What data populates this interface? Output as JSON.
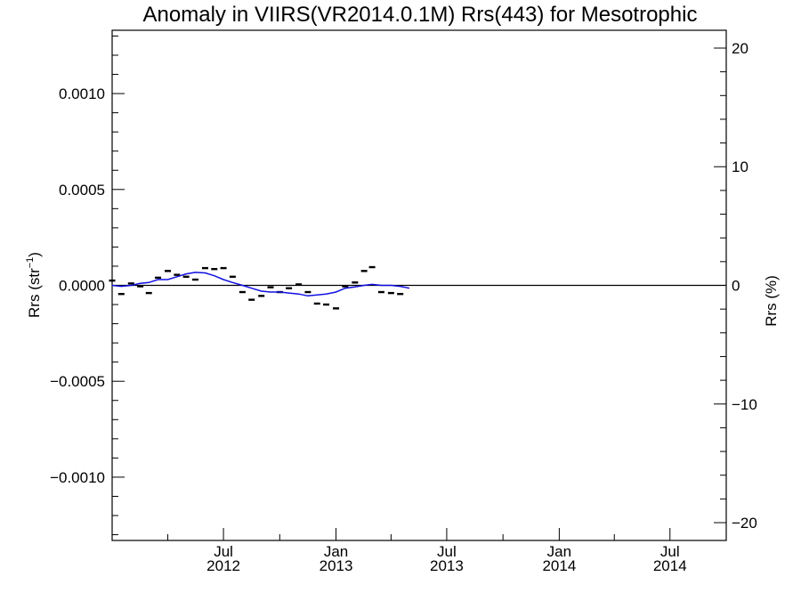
{
  "chart_data": {
    "type": "line",
    "title": "Anomaly in VIIRS(VR2014.0.1M) Rrs(443) for Mesotrophic",
    "ylabel": "Rrs (str",
    "ylabel_sup": "−1",
    "ylabel_close": ")",
    "ylabel_right": "Rrs (%)",
    "xlim": [
      "2012-01-01",
      "2014-10-01"
    ],
    "ylim": [
      -0.00133,
      0.00133
    ],
    "ylim_right": [
      -21.5,
      21.5
    ],
    "grid": false,
    "y_ticks": [
      {
        "value": 0.001,
        "label": "0.0010"
      },
      {
        "value": 0.0005,
        "label": "0.0005"
      },
      {
        "value": 0.0,
        "label": "0.0000"
      },
      {
        "value": -0.0005,
        "label": "−0.0005"
      },
      {
        "value": -0.001,
        "label": "−0.0010"
      }
    ],
    "y_right_ticks": [
      {
        "value": 20,
        "label": "20"
      },
      {
        "value": 10,
        "label": "10"
      },
      {
        "value": 0,
        "label": "0"
      },
      {
        "value": -10,
        "label": "−10"
      },
      {
        "value": -20,
        "label": "−20"
      }
    ],
    "x_ticks": [
      {
        "value": "2012-07-01",
        "label": "Jul",
        "year": "2012"
      },
      {
        "value": "2013-01-01",
        "label": "Jan",
        "year": "2013"
      },
      {
        "value": "2013-07-01",
        "label": "Jul",
        "year": "2013"
      },
      {
        "value": "2014-01-01",
        "label": "Jan",
        "year": "2014"
      },
      {
        "value": "2014-07-01",
        "label": "Jul",
        "year": "2014"
      }
    ],
    "x_minor_ticks": [
      "2012-01-01",
      "2012-04-01",
      "2012-10-01",
      "2013-04-01",
      "2013-10-01",
      "2014-04-01",
      "2014-10-01"
    ],
    "reference_line": {
      "y": 0.0,
      "color": "#000000"
    },
    "series": [
      {
        "kind": "markers",
        "color": "#000000",
        "points": [
          {
            "x": "2012-01-01",
            "y": 2.5e-05
          },
          {
            "x": "2012-01-16",
            "y": -4.5e-05
          },
          {
            "x": "2012-02-01",
            "y": 1e-05
          },
          {
            "x": "2012-02-16",
            "y": -5e-06
          },
          {
            "x": "2012-03-01",
            "y": -4e-05
          },
          {
            "x": "2012-03-16",
            "y": 4e-05
          },
          {
            "x": "2012-04-01",
            "y": 7.5e-05
          },
          {
            "x": "2012-04-16",
            "y": 5.5e-05
          },
          {
            "x": "2012-05-01",
            "y": 4.5e-05
          },
          {
            "x": "2012-05-16",
            "y": 3e-05
          },
          {
            "x": "2012-06-01",
            "y": 9e-05
          },
          {
            "x": "2012-06-16",
            "y": 8.5e-05
          },
          {
            "x": "2012-07-01",
            "y": 9e-05
          },
          {
            "x": "2012-07-16",
            "y": 4.5e-05
          },
          {
            "x": "2012-08-01",
            "y": -3.5e-05
          },
          {
            "x": "2012-08-16",
            "y": -7.5e-05
          },
          {
            "x": "2012-09-01",
            "y": -5.5e-05
          },
          {
            "x": "2012-09-16",
            "y": -1e-05
          },
          {
            "x": "2012-10-01",
            "y": -3.5e-05
          },
          {
            "x": "2012-10-16",
            "y": -1.5e-05
          },
          {
            "x": "2012-11-01",
            "y": 5e-06
          },
          {
            "x": "2012-11-16",
            "y": -3.5e-05
          },
          {
            "x": "2012-12-01",
            "y": -9.5e-05
          },
          {
            "x": "2012-12-16",
            "y": -0.0001
          },
          {
            "x": "2013-01-01",
            "y": -0.00012
          },
          {
            "x": "2013-01-16",
            "y": -5e-06
          },
          {
            "x": "2013-02-01",
            "y": 1.5e-05
          },
          {
            "x": "2013-02-16",
            "y": 7.5e-05
          },
          {
            "x": "2013-03-01",
            "y": 9.5e-05
          },
          {
            "x": "2013-03-16",
            "y": -3.5e-05
          },
          {
            "x": "2013-04-01",
            "y": -4e-05
          },
          {
            "x": "2013-04-16",
            "y": -4.5e-05
          }
        ]
      },
      {
        "kind": "line",
        "color": "#1010e0",
        "points": [
          {
            "x": "2012-01-01",
            "y": 0.0
          },
          {
            "x": "2012-01-16",
            "y": -5e-06
          },
          {
            "x": "2012-02-01",
            "y": 0.0
          },
          {
            "x": "2012-02-16",
            "y": 1e-05
          },
          {
            "x": "2012-03-01",
            "y": 1.5e-05
          },
          {
            "x": "2012-03-16",
            "y": 3e-05
          },
          {
            "x": "2012-04-01",
            "y": 3e-05
          },
          {
            "x": "2012-04-16",
            "y": 4.5e-05
          },
          {
            "x": "2012-05-01",
            "y": 6e-05
          },
          {
            "x": "2012-05-16",
            "y": 6.8e-05
          },
          {
            "x": "2012-06-01",
            "y": 6.5e-05
          },
          {
            "x": "2012-06-16",
            "y": 5e-05
          },
          {
            "x": "2012-07-01",
            "y": 3e-05
          },
          {
            "x": "2012-07-16",
            "y": 1.5e-05
          },
          {
            "x": "2012-08-01",
            "y": 0.0
          },
          {
            "x": "2012-08-16",
            "y": -1.5e-05
          },
          {
            "x": "2012-09-01",
            "y": -3e-05
          },
          {
            "x": "2012-09-16",
            "y": -3.5e-05
          },
          {
            "x": "2012-10-01",
            "y": -3.5e-05
          },
          {
            "x": "2012-10-16",
            "y": -4e-05
          },
          {
            "x": "2012-11-01",
            "y": -4.5e-05
          },
          {
            "x": "2012-11-16",
            "y": -5.5e-05
          },
          {
            "x": "2012-12-01",
            "y": -5e-05
          },
          {
            "x": "2012-12-16",
            "y": -4.5e-05
          },
          {
            "x": "2013-01-01",
            "y": -3.5e-05
          },
          {
            "x": "2013-01-16",
            "y": -1.5e-05
          },
          {
            "x": "2013-02-01",
            "y": -8e-06
          },
          {
            "x": "2013-02-16",
            "y": 0.0
          },
          {
            "x": "2013-03-01",
            "y": 5e-06
          },
          {
            "x": "2013-03-16",
            "y": 0.0
          },
          {
            "x": "2013-04-01",
            "y": 0.0
          },
          {
            "x": "2013-04-16",
            "y": -5e-06
          },
          {
            "x": "2013-05-01",
            "y": -1.5e-05
          }
        ]
      }
    ]
  }
}
